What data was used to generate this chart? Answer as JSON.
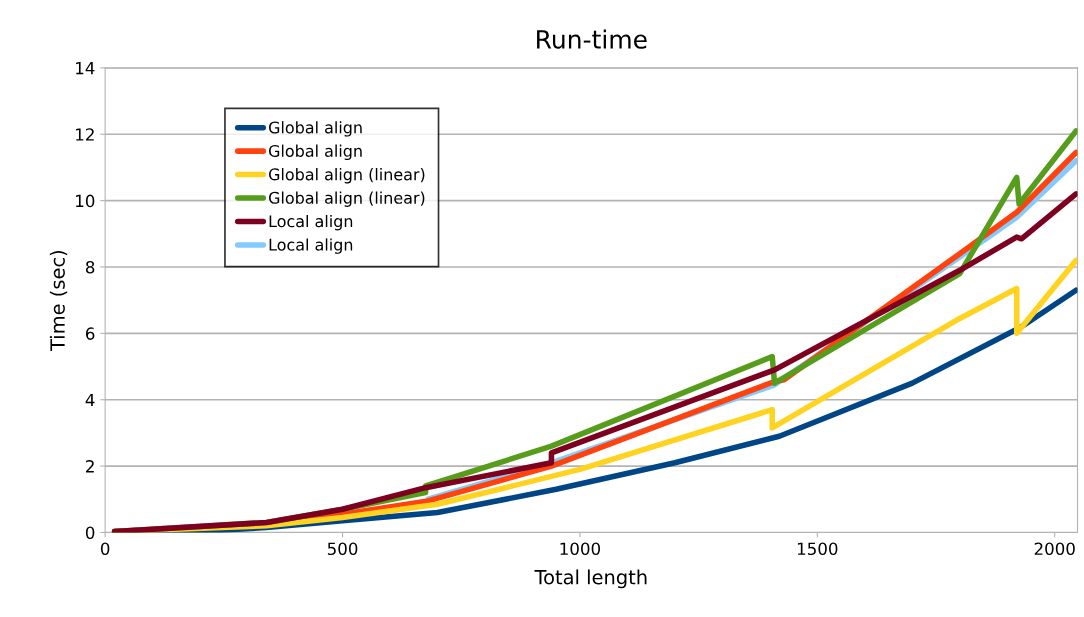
{
  "chart_data": {
    "type": "line",
    "title": "Run-time",
    "xlabel": "Total length",
    "ylabel": "Time (sec)",
    "xlim": [
      0,
      2048
    ],
    "xticks": [
      0,
      500,
      1000,
      1500,
      2000
    ],
    "ylim": [
      0,
      14
    ],
    "yticks": [
      0,
      2,
      4,
      6,
      8,
      10,
      12,
      14
    ],
    "grid": "y",
    "legend": "top left",
    "marker": "none",
    "line_style": "solid",
    "series": [
      {
        "name": "Global align",
        "color": "#004586",
        "x": [
          20,
          220,
          340,
          500,
          700,
          950,
          1200,
          1420,
          1700,
          1930,
          2045
        ],
        "values": [
          0.03,
          0.05,
          0.15,
          0.35,
          0.6,
          1.3,
          2.1,
          2.9,
          4.5,
          6.2,
          7.3
        ]
      },
      {
        "name": "Global align",
        "color": "#ff420e",
        "x": [
          20,
          340,
          500,
          680,
          940,
          1410,
          1430,
          1800,
          1920,
          2045
        ],
        "values": [
          0.03,
          0.25,
          0.55,
          0.95,
          2.0,
          4.55,
          4.6,
          8.4,
          9.65,
          11.45
        ]
      },
      {
        "name": "Global align (linear)",
        "color": "#ffd320",
        "x": [
          20,
          340,
          500,
          700,
          1000,
          1405,
          1405,
          1800,
          1920,
          1920,
          2045
        ],
        "values": [
          0.03,
          0.2,
          0.45,
          0.85,
          1.9,
          3.7,
          3.15,
          6.45,
          7.35,
          6.0,
          8.2
        ]
      },
      {
        "name": "Global align (linear)",
        "color": "#579d1c",
        "x": [
          20,
          340,
          500,
          675,
          675,
          940,
          1405,
          1410,
          1800,
          1920,
          1925,
          2045
        ],
        "values": [
          0.03,
          0.3,
          0.7,
          1.2,
          1.4,
          2.6,
          5.3,
          4.5,
          7.8,
          10.7,
          9.9,
          12.1
        ]
      },
      {
        "name": "Local align",
        "color": "#7e0021",
        "x": [
          20,
          340,
          500,
          675,
          940,
          940,
          1410,
          1800,
          1920,
          1930,
          2045
        ],
        "values": [
          0.03,
          0.3,
          0.7,
          1.35,
          2.1,
          2.4,
          4.9,
          7.9,
          8.9,
          8.85,
          10.2
        ]
      },
      {
        "name": "Local align",
        "color": "#83caff",
        "x": [
          680,
          940,
          1410,
          1800,
          1920,
          2045
        ],
        "values": [
          1.0,
          2.1,
          4.45,
          8.3,
          9.5,
          11.2
        ]
      }
    ]
  }
}
